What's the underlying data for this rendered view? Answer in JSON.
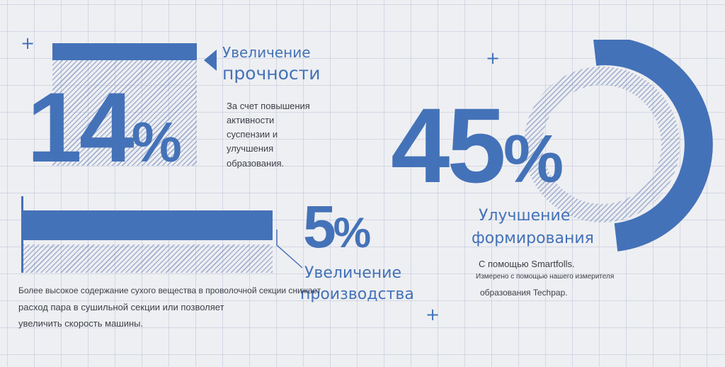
{
  "colors": {
    "accent": "#4472b8",
    "background": "#eeeff2",
    "text": "#3c3f48",
    "grid": "#aab2d2"
  },
  "icons": {
    "plus": "+"
  },
  "stat_strength": {
    "value": "14",
    "percent": "%",
    "title_line1": "Увеличение",
    "title_line2": "прочности",
    "desc_lines": [
      "За счет повышения",
      "активности",
      "суспензии и",
      "улучшения",
      "образования."
    ]
  },
  "stat_production": {
    "value": "5",
    "percent": "%",
    "title_line1": "Увеличение",
    "title_line2": "производства",
    "desc_lines": [
      "Более высокое содержание сухого вещества в проволочной секции снижает",
      "расход пара в сушильной секции или позволяет",
      "увеличить скорость машины."
    ]
  },
  "stat_formation": {
    "value": "45",
    "percent": "%",
    "title_line1": "Улучшение",
    "title_line2": "формирования",
    "desc_line1": "С помощью Smartfolls.",
    "desc_line2": "Измерено с помощью нашего измерителя",
    "desc_line3": "образования Techpap."
  }
}
